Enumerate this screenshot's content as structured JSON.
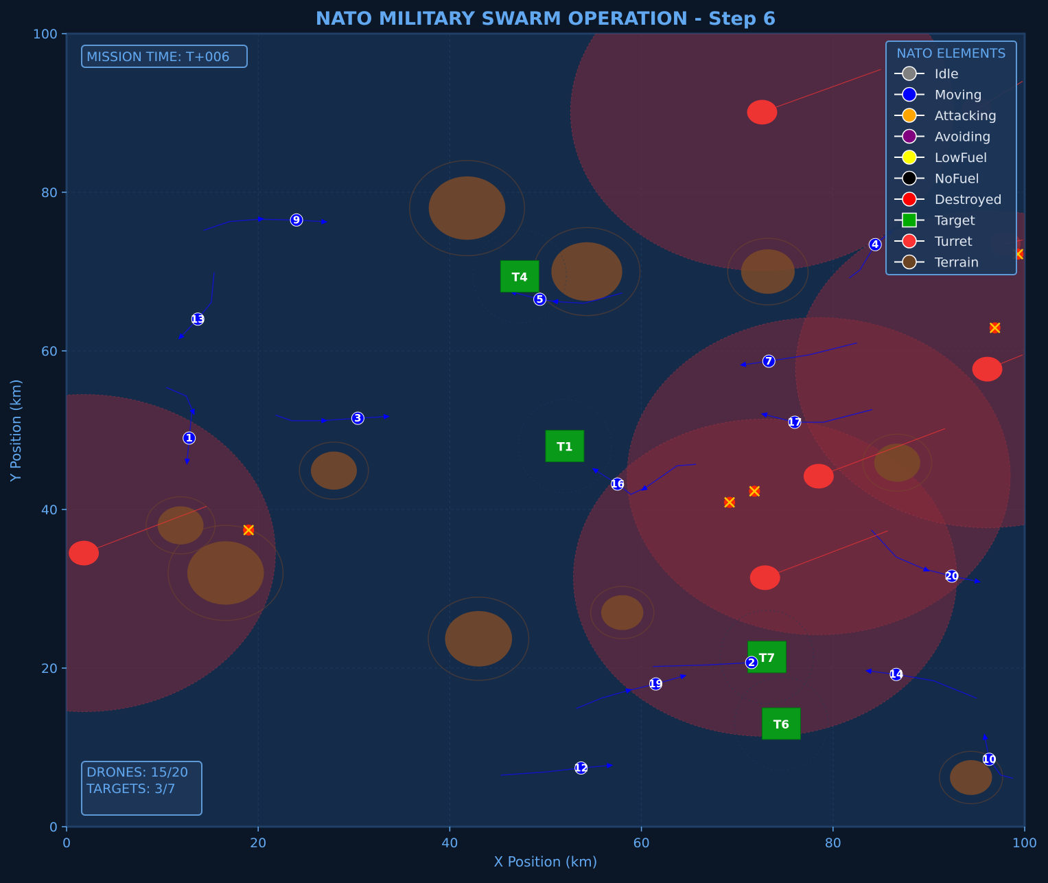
{
  "chart_data": {
    "type": "scatter",
    "title": "NATO MILITARY SWARM OPERATION - Step 6",
    "xlabel": "X Position (km)",
    "ylabel": "Y Position (km)",
    "xlim": [
      0,
      100
    ],
    "ylim": [
      0,
      100
    ],
    "xticks": [
      "0",
      "20",
      "40",
      "60",
      "80",
      "100"
    ],
    "yticks": [
      "0",
      "20",
      "40",
      "60",
      "80",
      "100"
    ],
    "grid": true,
    "mission_time": "MISSION TIME: T+006",
    "status_drones": "DRONES: 15/20",
    "status_targets": "TARGETS: 3/7",
    "legend": {
      "title": "NATO ELEMENTS",
      "position": "top-right",
      "items": [
        {
          "label": "Idle",
          "color": "#808080",
          "marker": "circle"
        },
        {
          "label": "Moving",
          "color": "#0000ff",
          "marker": "circle"
        },
        {
          "label": "Attacking",
          "color": "#ffa500",
          "marker": "circle"
        },
        {
          "label": "Avoiding",
          "color": "#800080",
          "marker": "circle"
        },
        {
          "label": "LowFuel",
          "color": "#ffff00",
          "marker": "circle"
        },
        {
          "label": "NoFuel",
          "color": "#000000",
          "marker": "circle"
        },
        {
          "label": "Destroyed",
          "color": "#ff0000",
          "marker": "circle"
        },
        {
          "label": "Target",
          "color": "#00aa00",
          "marker": "square"
        },
        {
          "label": "Turret",
          "color": "#ff3333",
          "marker": "circle"
        },
        {
          "label": "Terrain",
          "color": "#6b4423",
          "marker": "circle"
        }
      ]
    },
    "terrain": [
      {
        "x": 41.8,
        "y": 78.0,
        "r": 4.0
      },
      {
        "x": 54.3,
        "y": 70.0,
        "r": 3.7
      },
      {
        "x": 73.2,
        "y": 70.0,
        "r": 2.8
      },
      {
        "x": 27.9,
        "y": 44.9,
        "r": 2.4
      },
      {
        "x": 86.7,
        "y": 45.9,
        "r": 2.4
      },
      {
        "x": 11.9,
        "y": 38.0,
        "r": 2.4
      },
      {
        "x": 16.6,
        "y": 32.0,
        "r": 4.0
      },
      {
        "x": 58.0,
        "y": 27.0,
        "r": 2.2
      },
      {
        "x": 43.0,
        "y": 23.7,
        "r": 3.5
      },
      {
        "x": 94.4,
        "y": 6.2,
        "r": 2.2
      }
    ],
    "turrets": [
      {
        "x": 1.8,
        "y": 34.5,
        "range": 20,
        "aim": [
          14.6,
          40.4
        ]
      },
      {
        "x": 72.6,
        "y": 90.1,
        "range": 20,
        "aim": [
          85.0,
          95.5
        ]
      },
      {
        "x": 78.5,
        "y": 44.2,
        "range": 20,
        "aim": [
          91.7,
          50.2
        ]
      },
      {
        "x": 72.9,
        "y": 31.4,
        "range": 20,
        "aim": [
          85.7,
          37.3
        ]
      },
      {
        "x": 96.1,
        "y": 57.7,
        "range": 20,
        "aim": [
          99.8,
          59.5
        ]
      },
      {
        "x": 95.0,
        "y": 90.5,
        "range": 0,
        "aim": [
          99.8,
          94.0
        ]
      },
      {
        "x": 98.0,
        "y": 73.5,
        "range": 0,
        "aim": [
          99.8,
          74.0
        ]
      }
    ],
    "targets": [
      {
        "label": "T4",
        "x": 47.3,
        "y": 69.4
      },
      {
        "label": "T1",
        "x": 52.0,
        "y": 48.0
      },
      {
        "label": "T7",
        "x": 73.1,
        "y": 21.4
      },
      {
        "label": "T6",
        "x": 74.6,
        "y": 13.0
      }
    ],
    "destroyed": [
      {
        "x": 19.0,
        "y": 37.4
      },
      {
        "x": 69.2,
        "y": 40.9
      },
      {
        "x": 71.8,
        "y": 42.3
      },
      {
        "x": 96.9,
        "y": 62.9
      },
      {
        "x": 99.3,
        "y": 72.2
      }
    ],
    "drones": [
      {
        "id": "9",
        "x": 24.0,
        "y": 76.5,
        "path": [
          [
            14.3,
            75.2
          ],
          [
            17.0,
            76.3
          ],
          [
            20.0,
            76.6
          ],
          [
            24.0,
            76.5
          ],
          [
            26.6,
            76.3
          ]
        ]
      },
      {
        "id": "13",
        "x": 13.7,
        "y": 64.0,
        "path": [
          [
            15.4,
            69.9
          ],
          [
            15.1,
            66.1
          ],
          [
            13.7,
            64.0
          ],
          [
            12.1,
            62.0
          ]
        ]
      },
      {
        "id": "1",
        "x": 12.8,
        "y": 49.0,
        "path": [
          [
            10.4,
            55.4
          ],
          [
            12.5,
            54.3
          ],
          [
            13.1,
            52.6
          ],
          [
            12.8,
            49.0
          ],
          [
            12.6,
            46.4
          ]
        ]
      },
      {
        "id": "3",
        "x": 30.4,
        "y": 51.5,
        "path": [
          [
            21.8,
            51.9
          ],
          [
            23.5,
            51.2
          ],
          [
            26.6,
            51.2
          ],
          [
            30.4,
            51.5
          ],
          [
            33.1,
            51.7
          ]
        ]
      },
      {
        "id": "5",
        "x": 49.4,
        "y": 66.5,
        "path": [
          [
            58.0,
            67.3
          ],
          [
            54.0,
            66.0
          ],
          [
            51.3,
            66.2
          ],
          [
            49.4,
            66.5
          ],
          [
            46.9,
            67.3
          ]
        ]
      },
      {
        "id": "7",
        "x": 73.3,
        "y": 58.7,
        "path": [
          [
            82.5,
            61.0
          ],
          [
            77.5,
            59.5
          ],
          [
            73.3,
            58.7
          ],
          [
            70.9,
            58.3
          ]
        ]
      },
      {
        "id": "17",
        "x": 76.0,
        "y": 51.0,
        "path": [
          [
            84.1,
            52.6
          ],
          [
            79.0,
            51.0
          ],
          [
            76.0,
            51.0
          ],
          [
            73.1,
            51.9
          ]
        ]
      },
      {
        "id": "16",
        "x": 57.5,
        "y": 43.2,
        "path": [
          [
            65.7,
            45.7
          ],
          [
            63.7,
            45.5
          ],
          [
            60.5,
            42.8
          ],
          [
            58.9,
            41.9
          ],
          [
            57.5,
            43.2
          ],
          [
            55.4,
            44.8
          ]
        ]
      },
      {
        "id": "4",
        "x": 84.4,
        "y": 73.4,
        "path": [
          [
            81.7,
            69.2
          ],
          [
            82.8,
            70.2
          ],
          [
            84.4,
            73.4
          ],
          [
            85.8,
            74.8
          ]
        ]
      },
      {
        "id": "20",
        "x": 92.4,
        "y": 31.6,
        "path": [
          [
            84.0,
            37.4
          ],
          [
            86.6,
            34.0
          ],
          [
            89.5,
            32.5
          ],
          [
            92.4,
            31.6
          ],
          [
            94.8,
            31.0
          ]
        ]
      },
      {
        "id": "2",
        "x": 71.5,
        "y": 20.7,
        "path": [
          [
            61.2,
            20.2
          ],
          [
            67.0,
            20.4
          ],
          [
            71.5,
            20.7
          ],
          [
            73.5,
            21.0
          ]
        ]
      },
      {
        "id": "19",
        "x": 61.5,
        "y": 18.0,
        "path": [
          [
            53.2,
            14.9
          ],
          [
            55.8,
            16.2
          ],
          [
            58.4,
            17.1
          ],
          [
            61.5,
            18.0
          ],
          [
            64.1,
            18.9
          ]
        ]
      },
      {
        "id": "14",
        "x": 86.6,
        "y": 19.2,
        "path": [
          [
            95.0,
            16.2
          ],
          [
            90.5,
            18.4
          ],
          [
            86.6,
            19.2
          ],
          [
            84.0,
            19.6
          ]
        ]
      },
      {
        "id": "12",
        "x": 53.7,
        "y": 7.4,
        "path": [
          [
            45.3,
            6.5
          ],
          [
            50.0,
            6.9
          ],
          [
            53.7,
            7.4
          ],
          [
            56.4,
            7.7
          ]
        ]
      },
      {
        "id": "10",
        "x": 96.3,
        "y": 8.5,
        "path": [
          [
            98.8,
            6.1
          ],
          [
            97.5,
            6.5
          ],
          [
            96.3,
            8.5
          ],
          [
            95.9,
            11.0
          ]
        ]
      }
    ]
  },
  "colors": {
    "page_bg": "#0b1626",
    "axes_bg": "#142b4a",
    "accent": "#62a8f0",
    "grid": "#25446a",
    "drone": "#0000ff",
    "path": "#1010d8",
    "turret": "#ee3333",
    "turret_zone": "#8a2a3a",
    "target": "#0a9a1a",
    "terrain": "#7a4a28"
  }
}
